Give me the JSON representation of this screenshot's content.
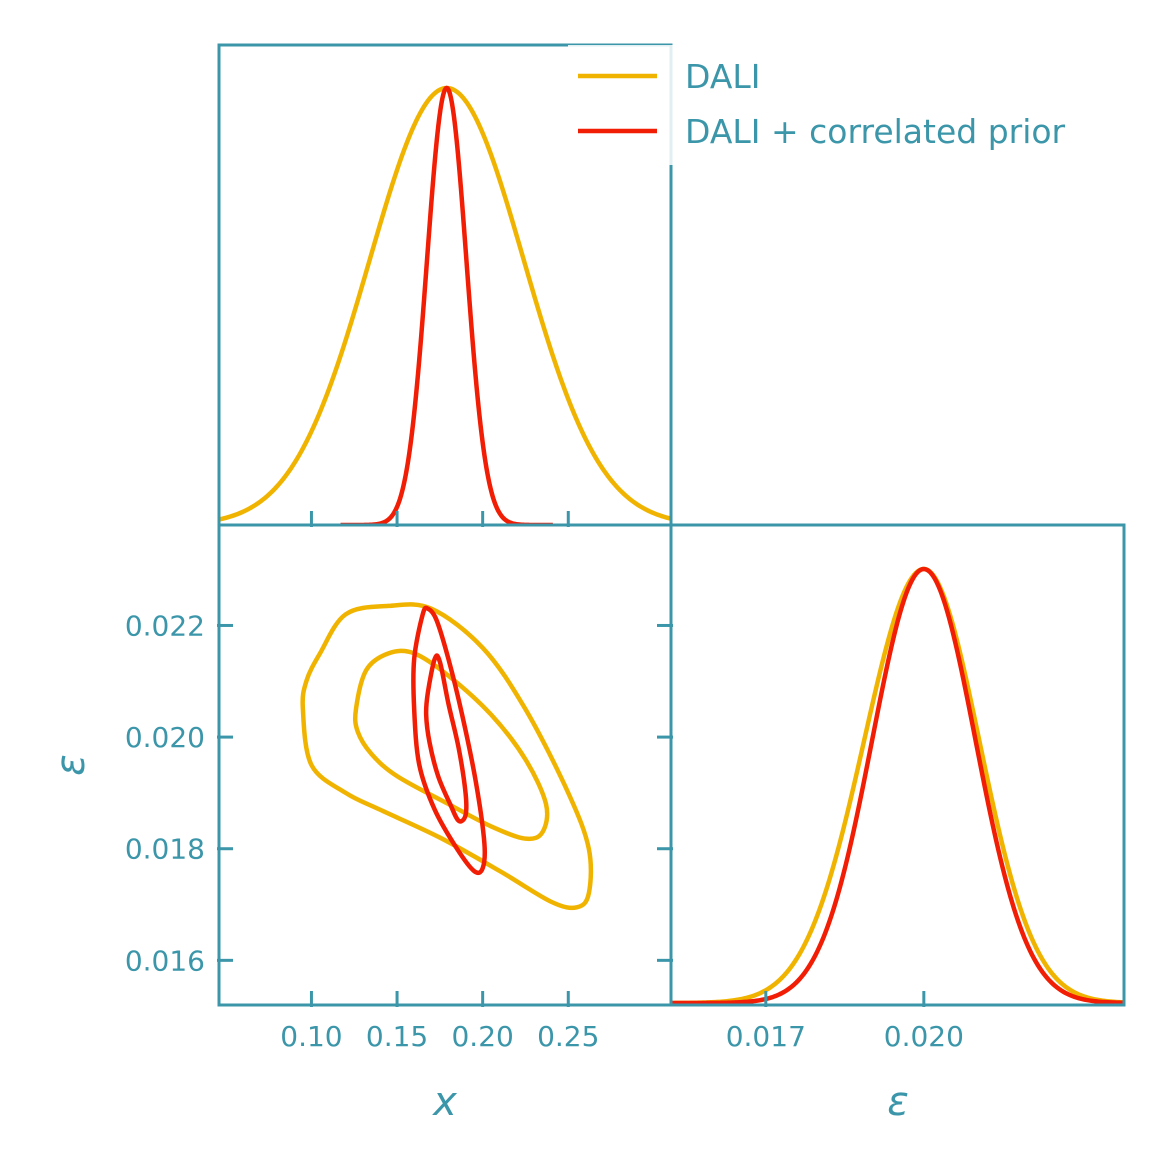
{
  "colors": {
    "axis": "#3c96aa",
    "dali": "#f0b400",
    "dali_prior": "#f21d05",
    "background": "#ffffff"
  },
  "chart_data": {
    "type": "corner",
    "parameters": [
      "x",
      "ε"
    ],
    "legend": {
      "placement": "top-right",
      "entries": [
        {
          "label": "DALI",
          "series": "dali"
        },
        {
          "label": "DALI + correlated prior",
          "series": "dali_prior"
        }
      ]
    },
    "x_axis": {
      "label": "x",
      "range": [
        0.046,
        0.31
      ],
      "ticks": [
        0.1,
        0.15,
        0.2,
        0.25
      ],
      "tick_labels": [
        "0.10",
        "0.15",
        "0.20",
        "0.25"
      ]
    },
    "eps_axis": {
      "label": "ε",
      "range": [
        0.0152,
        0.0238
      ],
      "ticks": [
        0.016,
        0.018,
        0.02,
        0.022
      ],
      "tick_labels": [
        "0.016",
        "0.018",
        "0.020",
        "0.022"
      ]
    },
    "eps_marginal_axis": {
      "label": "ε",
      "range": [
        0.0152,
        0.0238
      ],
      "ticks": [
        0.017,
        0.02
      ],
      "tick_labels": [
        "0.017",
        "0.020"
      ]
    },
    "marginal_x": {
      "dali": {
        "mean": 0.179,
        "sigma": 0.045
      },
      "dali_prior": {
        "mean": 0.179,
        "sigma": 0.0115,
        "x_range": [
          0.117,
          0.241
        ]
      }
    },
    "marginal_eps": {
      "dali": {
        "mean": 0.02,
        "sigma_left": 0.00113,
        "sigma_right": 0.00105
      },
      "dali_prior": {
        "mean": 0.02,
        "sigma_left": 0.00098,
        "sigma_right": 0.00098
      }
    },
    "contours": [
      {
        "series": "dali",
        "level": "outer",
        "points": [
          [
            0.095,
            0.0205
          ],
          [
            0.097,
            0.021
          ],
          [
            0.105,
            0.0215
          ],
          [
            0.12,
            0.0222
          ],
          [
            0.145,
            0.02235
          ],
          [
            0.17,
            0.0223
          ],
          [
            0.2,
            0.0216
          ],
          [
            0.225,
            0.0205
          ],
          [
            0.25,
            0.019
          ],
          [
            0.262,
            0.018
          ],
          [
            0.262,
            0.0172
          ],
          [
            0.255,
            0.01695
          ],
          [
            0.24,
            0.01705
          ],
          [
            0.21,
            0.0176
          ],
          [
            0.175,
            0.0182
          ],
          [
            0.14,
            0.0187
          ],
          [
            0.12,
            0.019
          ],
          [
            0.1,
            0.0195
          ]
        ]
      },
      {
        "series": "dali",
        "level": "inner",
        "points": [
          [
            0.126,
            0.0205
          ],
          [
            0.132,
            0.0212
          ],
          [
            0.145,
            0.0215
          ],
          [
            0.16,
            0.0215
          ],
          [
            0.18,
            0.0211
          ],
          [
            0.205,
            0.0204
          ],
          [
            0.225,
            0.0196
          ],
          [
            0.237,
            0.0188
          ],
          [
            0.235,
            0.0183
          ],
          [
            0.225,
            0.01818
          ],
          [
            0.205,
            0.0184
          ],
          [
            0.18,
            0.0188
          ],
          [
            0.15,
            0.0193
          ],
          [
            0.135,
            0.0197
          ],
          [
            0.127,
            0.0201
          ]
        ]
      },
      {
        "series": "dali_prior",
        "level": "outer",
        "points": [
          [
            0.16,
            0.0214
          ],
          [
            0.165,
            0.0222
          ],
          [
            0.168,
            0.0223
          ],
          [
            0.173,
            0.0221
          ],
          [
            0.18,
            0.0214
          ],
          [
            0.188,
            0.0204
          ],
          [
            0.196,
            0.0192
          ],
          [
            0.201,
            0.0181
          ],
          [
            0.2,
            0.01765
          ],
          [
            0.195,
            0.0176
          ],
          [
            0.185,
            0.018
          ],
          [
            0.172,
            0.0187
          ],
          [
            0.163,
            0.0195
          ],
          [
            0.16,
            0.0205
          ]
        ]
      },
      {
        "series": "dali_prior",
        "level": "inner",
        "points": [
          [
            0.168,
            0.0208
          ],
          [
            0.172,
            0.0214
          ],
          [
            0.175,
            0.02135
          ],
          [
            0.18,
            0.0206
          ],
          [
            0.186,
            0.0198
          ],
          [
            0.19,
            0.019
          ],
          [
            0.19,
            0.0186
          ],
          [
            0.186,
            0.0185
          ],
          [
            0.181,
            0.0188
          ],
          [
            0.174,
            0.0193
          ],
          [
            0.169,
            0.0199
          ],
          [
            0.167,
            0.0204
          ]
        ]
      }
    ]
  }
}
